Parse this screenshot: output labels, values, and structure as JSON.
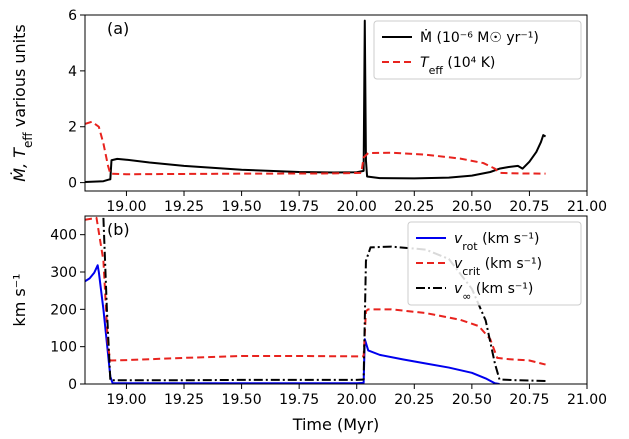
{
  "chart_data": [
    {
      "type": "line",
      "panel_label": "(a)",
      "ylabel": "Ṁ, T_eff various units",
      "xlabel": "",
      "xlim": [
        18.82,
        21.0
      ],
      "ylim": [
        -0.3,
        6.0
      ],
      "x_ticks": [
        "19.00",
        "19.25",
        "19.50",
        "19.75",
        "20.00",
        "20.25",
        "20.50",
        "20.75",
        "21.00"
      ],
      "y_ticks": [
        "0",
        "2",
        "4",
        "6"
      ],
      "legend_position": "top-right",
      "series": [
        {
          "name": "Ṁ (10⁻⁶ M☉ yr⁻¹)",
          "color": "#000000",
          "dash": "solid",
          "points": [
            [
              18.82,
              0.02
            ],
            [
              18.9,
              0.05
            ],
            [
              18.92,
              0.1
            ],
            [
              18.93,
              0.12
            ],
            [
              18.935,
              0.8
            ],
            [
              18.96,
              0.85
            ],
            [
              19.0,
              0.82
            ],
            [
              19.1,
              0.72
            ],
            [
              19.25,
              0.6
            ],
            [
              19.5,
              0.46
            ],
            [
              19.75,
              0.38
            ],
            [
              19.9,
              0.36
            ],
            [
              20.0,
              0.37
            ],
            [
              20.03,
              0.42
            ],
            [
              20.035,
              5.8
            ],
            [
              20.04,
              0.8
            ],
            [
              20.045,
              0.22
            ],
            [
              20.1,
              0.16
            ],
            [
              20.25,
              0.15
            ],
            [
              20.4,
              0.18
            ],
            [
              20.5,
              0.25
            ],
            [
              20.58,
              0.38
            ],
            [
              20.62,
              0.5
            ],
            [
              20.66,
              0.56
            ],
            [
              20.7,
              0.6
            ],
            [
              20.72,
              0.5
            ],
            [
              20.75,
              0.75
            ],
            [
              20.78,
              1.1
            ],
            [
              20.8,
              1.45
            ],
            [
              20.81,
              1.7
            ],
            [
              20.82,
              1.65
            ]
          ]
        },
        {
          "name": "T_eff (10⁴ K)",
          "color": "#e8231e",
          "dash": "dashed",
          "points": [
            [
              18.82,
              2.1
            ],
            [
              18.85,
              2.18
            ],
            [
              18.88,
              2.0
            ],
            [
              18.9,
              1.4
            ],
            [
              18.92,
              0.6
            ],
            [
              18.93,
              0.32
            ],
            [
              19.0,
              0.3
            ],
            [
              19.5,
              0.32
            ],
            [
              19.9,
              0.33
            ],
            [
              20.02,
              0.35
            ],
            [
              20.03,
              0.9
            ],
            [
              20.05,
              1.06
            ],
            [
              20.15,
              1.07
            ],
            [
              20.3,
              1.0
            ],
            [
              20.45,
              0.86
            ],
            [
              20.55,
              0.7
            ],
            [
              20.6,
              0.5
            ],
            [
              20.62,
              0.35
            ],
            [
              20.7,
              0.33
            ],
            [
              20.82,
              0.32
            ]
          ]
        }
      ]
    },
    {
      "type": "line",
      "panel_label": "(b)",
      "ylabel": "km s⁻¹",
      "xlabel": "Time (Myr)",
      "xlim": [
        18.82,
        21.0
      ],
      "ylim": [
        0,
        450
      ],
      "x_ticks": [
        "19.00",
        "19.25",
        "19.50",
        "19.75",
        "20.00",
        "20.25",
        "20.50",
        "20.75",
        "21.00"
      ],
      "y_ticks": [
        "0",
        "100",
        "200",
        "300",
        "400"
      ],
      "legend_position": "top-right",
      "series": [
        {
          "name": "v_rot (km s⁻¹)",
          "color": "#0000ee",
          "dash": "solid",
          "points": [
            [
              18.82,
              275
            ],
            [
              18.84,
              283
            ],
            [
              18.86,
              298
            ],
            [
              18.875,
              318
            ],
            [
              18.88,
              300
            ],
            [
              18.9,
              200
            ],
            [
              18.92,
              80
            ],
            [
              18.93,
              20
            ],
            [
              18.94,
              2
            ],
            [
              19.5,
              2
            ],
            [
              20.0,
              2
            ],
            [
              20.03,
              3
            ],
            [
              20.035,
              120
            ],
            [
              20.05,
              90
            ],
            [
              20.1,
              78
            ],
            [
              20.2,
              66
            ],
            [
              20.3,
              55
            ],
            [
              20.4,
              44
            ],
            [
              20.5,
              30
            ],
            [
              20.56,
              15
            ],
            [
              20.6,
              2
            ],
            [
              20.62,
              0
            ]
          ]
        },
        {
          "name": "v_crit (km s⁻¹)",
          "color": "#e8231e",
          "dash": "dashed",
          "points": [
            [
              18.82,
              440
            ],
            [
              18.87,
              445
            ],
            [
              18.9,
              330
            ],
            [
              18.92,
              100
            ],
            [
              18.93,
              63
            ],
            [
              19.0,
              64
            ],
            [
              19.25,
              70
            ],
            [
              19.5,
              75
            ],
            [
              19.75,
              75
            ],
            [
              20.0,
              74
            ],
            [
              20.03,
              74
            ],
            [
              20.04,
              195
            ],
            [
              20.05,
              200
            ],
            [
              20.15,
              200
            ],
            [
              20.3,
              190
            ],
            [
              20.45,
              172
            ],
            [
              20.53,
              155
            ],
            [
              20.58,
              120
            ],
            [
              20.61,
              70
            ],
            [
              20.65,
              67
            ],
            [
              20.75,
              63
            ],
            [
              20.82,
              52
            ]
          ]
        },
        {
          "name": "v_∞ (km s⁻¹)",
          "color": "#000000",
          "dash": "dashdot",
          "points": [
            [
              18.9,
              445
            ],
            [
              18.915,
              200
            ],
            [
              18.93,
              10
            ],
            [
              19.25,
              10
            ],
            [
              19.5,
              11
            ],
            [
              20.0,
              11
            ],
            [
              20.03,
              12
            ],
            [
              20.04,
              330
            ],
            [
              20.06,
              366
            ],
            [
              20.15,
              368
            ],
            [
              20.3,
              360
            ],
            [
              20.4,
              335
            ],
            [
              20.5,
              255
            ],
            [
              20.56,
              170
            ],
            [
              20.6,
              55
            ],
            [
              20.62,
              12
            ],
            [
              20.7,
              10
            ],
            [
              20.82,
              8
            ]
          ]
        }
      ]
    }
  ]
}
